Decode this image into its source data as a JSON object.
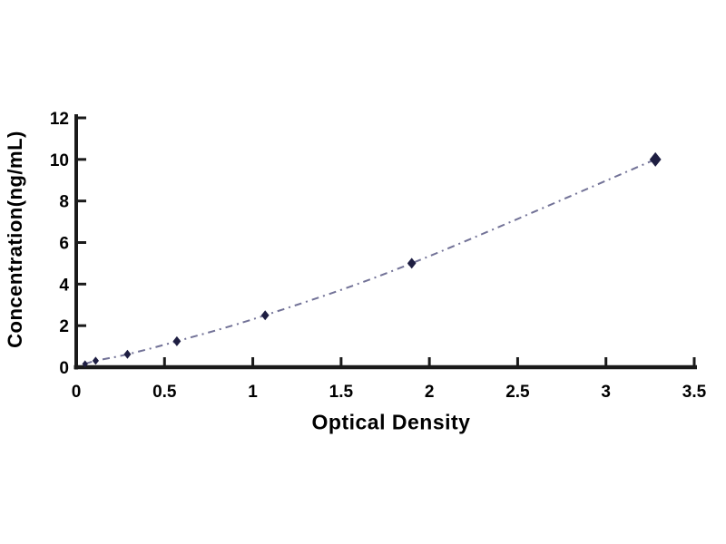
{
  "figure": {
    "background_color": "#ffffff",
    "axis_color": "#1a1a1a",
    "text_color": "#000000"
  },
  "chart_data": {
    "type": "line",
    "title": "",
    "xlabel": "Optical Density",
    "ylabel": "Concentration(ng/mL)",
    "x": [
      0.05,
      0.11,
      0.29,
      0.57,
      1.07,
      1.9,
      3.28
    ],
    "y": [
      0.16,
      0.31,
      0.62,
      1.25,
      2.5,
      5.0,
      10.0
    ],
    "xlim": [
      0,
      3.5
    ],
    "ylim": [
      0,
      12
    ],
    "x_tick_labels": [
      "0",
      "0.5",
      "1",
      "1.5",
      "2",
      "2.5",
      "3",
      "3.5"
    ],
    "x_tick_values": [
      0,
      0.5,
      1,
      1.5,
      2,
      2.5,
      3,
      3.5
    ],
    "y_tick_labels": [
      "0",
      "2",
      "4",
      "6",
      "8",
      "10",
      "12"
    ],
    "y_tick_values": [
      0,
      2,
      4,
      6,
      8,
      10,
      12
    ],
    "grid": false,
    "legend": null,
    "line_color": "#63638c",
    "line_style": "dash-dot",
    "marker": "diamond",
    "marker_color": "#1e1e42",
    "marker_sizes": [
      4,
      4.5,
      5,
      5.5,
      5.5,
      6,
      8
    ]
  }
}
